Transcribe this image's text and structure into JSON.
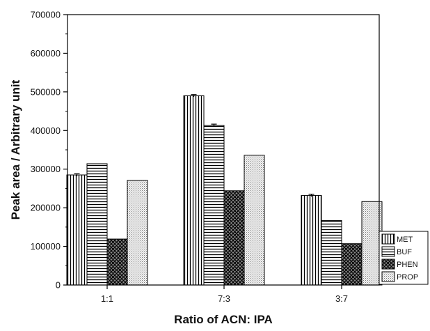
{
  "chart_data": {
    "type": "bar",
    "xlabel": "Ratio of ACN: IPA",
    "ylabel": "Peak area / Arbitrary unit",
    "ylim": [
      0,
      700000
    ],
    "yticks": [
      0,
      100000,
      200000,
      300000,
      400000,
      500000,
      600000,
      700000
    ],
    "categories": [
      "1:1",
      "7:3",
      "3:7"
    ],
    "series": [
      {
        "name": "MET",
        "pattern": "vertical-lines",
        "values": [
          285000,
          490000,
          232000
        ],
        "error": [
          3000,
          3000,
          3000
        ]
      },
      {
        "name": "BUF",
        "pattern": "horizontal-lines",
        "values": [
          314000,
          413000,
          167000
        ],
        "error": [
          0,
          3500,
          0
        ]
      },
      {
        "name": "PHEN",
        "pattern": "crosshatch",
        "values": [
          119000,
          244000,
          107000
        ],
        "error": [
          0,
          0,
          0
        ]
      },
      {
        "name": "PROP",
        "pattern": "dots",
        "values": [
          271000,
          336000,
          216000
        ],
        "error": [
          0,
          0,
          0
        ]
      }
    ],
    "legend_position": "right",
    "grid": false
  }
}
